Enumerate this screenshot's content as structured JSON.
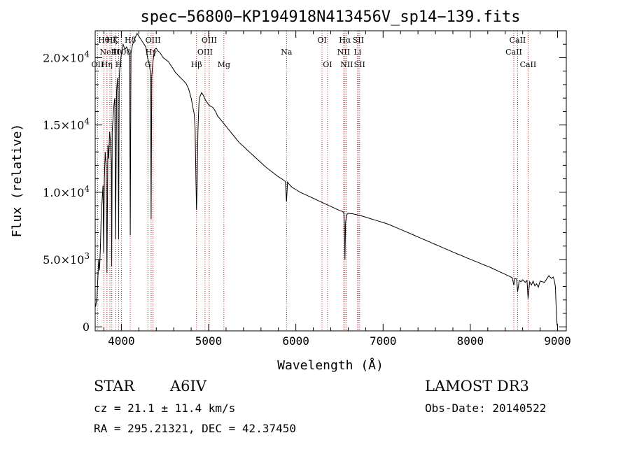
{
  "chart_data": {
    "type": "line",
    "title": "spec−56800−KP194918N413456V_sp14−139.fits",
    "xlabel": "Wavelength (Å)",
    "ylabel": "Flux (relative)",
    "xlim": [
      3700,
      9100
    ],
    "ylim": [
      -300,
      22000
    ],
    "x_ticks": [
      4000,
      5000,
      6000,
      7000,
      8000,
      9000
    ],
    "x_tick_labels": [
      "4000",
      "5000",
      "6000",
      "7000",
      "8000",
      "9000"
    ],
    "y_ticks": [
      0,
      5000,
      10000,
      15000,
      20000
    ],
    "y_tick_labels": [
      {
        "mant": "0",
        "exp": ""
      },
      {
        "mant": "5.0×10",
        "exp": "3"
      },
      {
        "mant": "1.0×10",
        "exp": "4"
      },
      {
        "mant": "1.5×10",
        "exp": "4"
      },
      {
        "mant": "2.0×10",
        "exp": "4"
      }
    ],
    "spectral_lines": [
      {
        "wavelength": 3727,
        "label": "OII",
        "row": 3
      },
      {
        "wavelength": 3799,
        "label": "Hθ",
        "row": 1
      },
      {
        "wavelength": 3835,
        "label": "Hη",
        "row": 3
      },
      {
        "wavelength": 3869,
        "label": "NeIII",
        "row": 2
      },
      {
        "wavelength": 3890,
        "label": "Hζ",
        "row": 1
      },
      {
        "wavelength": 3934,
        "label": "K",
        "row": 1
      },
      {
        "wavelength": 3969,
        "label": "H",
        "row": 3
      },
      {
        "wavelength": 4000,
        "label": "4000",
        "row": 2
      },
      {
        "wavelength": 4102,
        "label": "Hδ",
        "row": 1
      },
      {
        "wavelength": 4304,
        "label": "G",
        "row": 3
      },
      {
        "wavelength": 4341,
        "label": "Hγ",
        "row": 2
      },
      {
        "wavelength": 4363,
        "label": "OIII",
        "row": 1
      },
      {
        "wavelength": 4861,
        "label": "Hβ",
        "row": 3
      },
      {
        "wavelength": 4959,
        "label": "OIII",
        "row": 2
      },
      {
        "wavelength": 5007,
        "label": "OIII",
        "row": 1
      },
      {
        "wavelength": 5175,
        "label": "Mg",
        "row": 3
      },
      {
        "wavelength": 5893,
        "label": "Na",
        "row": 2
      },
      {
        "wavelength": 6300,
        "label": "OI",
        "row": 1
      },
      {
        "wavelength": 6363,
        "label": "OI",
        "row": 3
      },
      {
        "wavelength": 6548,
        "label": "NII",
        "row": 2
      },
      {
        "wavelength": 6563,
        "label": "Hα",
        "row": 1
      },
      {
        "wavelength": 6583,
        "label": "NII",
        "row": 3
      },
      {
        "wavelength": 6707,
        "label": "Li",
        "row": 2
      },
      {
        "wavelength": 6716,
        "label": "SII",
        "row": 1
      },
      {
        "wavelength": 6731,
        "label": "SII",
        "row": 3
      },
      {
        "wavelength": 8498,
        "label": "CaII",
        "row": 2
      },
      {
        "wavelength": 8542,
        "label": "CaII",
        "row": 1
      },
      {
        "wavelength": 8662,
        "label": "CaII",
        "row": 3
      }
    ],
    "series": [
      {
        "name": "flux",
        "x": [
          3705,
          3720,
          3730,
          3740,
          3750,
          3760,
          3770,
          3780,
          3790,
          3797,
          3805,
          3815,
          3825,
          3835,
          3845,
          3855,
          3865,
          3875,
          3885,
          3889,
          3895,
          3905,
          3915,
          3925,
          3934,
          3945,
          3955,
          3960,
          3969,
          3975,
          3985,
          3995,
          4005,
          4020,
          4040,
          4060,
          4080,
          4095,
          4102,
          4110,
          4125,
          4140,
          4160,
          4180,
          4200,
          4220,
          4240,
          4260,
          4280,
          4300,
          4320,
          4335,
          4341,
          4348,
          4360,
          4380,
          4400,
          4420,
          4440,
          4460,
          4480,
          4500,
          4520,
          4540,
          4560,
          4580,
          4600,
          4620,
          4650,
          4680,
          4710,
          4740,
          4770,
          4800,
          4820,
          4835,
          4845,
          4855,
          4861,
          4868,
          4878,
          4890,
          4900,
          4920,
          4940,
          4960,
          4980,
          5000,
          5020,
          5050,
          5080,
          5100,
          5150,
          5200,
          5250,
          5300,
          5350,
          5400,
          5450,
          5500,
          5550,
          5600,
          5650,
          5700,
          5750,
          5800,
          5850,
          5880,
          5893,
          5905,
          5930,
          5960,
          6000,
          6050,
          6100,
          6150,
          6200,
          6250,
          6300,
          6350,
          6400,
          6450,
          6500,
          6530,
          6550,
          6556,
          6563,
          6570,
          6580,
          6600,
          6620,
          6650,
          6700,
          6750,
          6800,
          6850,
          6900,
          6950,
          7000,
          7050,
          7100,
          7150,
          7200,
          7250,
          7300,
          7350,
          7400,
          7450,
          7500,
          7550,
          7600,
          7650,
          7700,
          7750,
          7800,
          7850,
          7900,
          7950,
          8000,
          8050,
          8100,
          8150,
          8200,
          8250,
          8300,
          8350,
          8400,
          8450,
          8480,
          8498,
          8510,
          8530,
          8542,
          8560,
          8580,
          8600,
          8630,
          8650,
          8662,
          8680,
          8700,
          8720,
          8740,
          8760,
          8780,
          8800,
          8850,
          8900,
          8930,
          8950,
          8960,
          8975,
          8985,
          8995
        ],
        "values": [
          1500,
          2200,
          3500,
          5000,
          4200,
          6000,
          8500,
          9500,
          10500,
          5500,
          11000,
          13000,
          12000,
          4000,
          13500,
          12500,
          14500,
          13800,
          12000,
          4500,
          14500,
          15500,
          16500,
          17000,
          6500,
          17500,
          18500,
          17000,
          6500,
          18500,
          19500,
          20000,
          20500,
          21000,
          20600,
          20800,
          20500,
          20000,
          6800,
          20300,
          20900,
          21200,
          21500,
          21800,
          21600,
          21400,
          21200,
          21000,
          20800,
          20000,
          19500,
          18800,
          8000,
          18600,
          19600,
          20600,
          20700,
          20500,
          20400,
          20200,
          20000,
          19900,
          19800,
          19700,
          19500,
          19300,
          19100,
          18900,
          18700,
          18500,
          18300,
          18100,
          17700,
          17000,
          16300,
          15800,
          14800,
          11000,
          8700,
          10500,
          14600,
          16700,
          17100,
          17400,
          17200,
          16900,
          16700,
          16500,
          16400,
          16300,
          16000,
          15700,
          15300,
          14900,
          14500,
          14100,
          13700,
          13400,
          13100,
          12800,
          12500,
          12200,
          11900,
          11650,
          11400,
          11150,
          10950,
          10800,
          9300,
          10750,
          10550,
          10350,
          10200,
          10000,
          9850,
          9700,
          9550,
          9400,
          9250,
          9100,
          8950,
          8800,
          8650,
          8580,
          8500,
          7500,
          5000,
          7700,
          8300,
          8450,
          8420,
          8400,
          8330,
          8250,
          8150,
          8050,
          7950,
          7850,
          7750,
          7650,
          7520,
          7380,
          7240,
          7100,
          6960,
          6820,
          6680,
          6540,
          6400,
          6260,
          6120,
          5980,
          5840,
          5700,
          5560,
          5420,
          5300,
          5150,
          5020,
          4890,
          4760,
          4620,
          4500,
          4350,
          4200,
          4050,
          3900,
          3750,
          3650,
          3100,
          3600,
          3550,
          2600,
          3450,
          3350,
          3500,
          3300,
          3450,
          2100,
          3350,
          3100,
          3400,
          3050,
          3200,
          2950,
          3400,
          3300,
          3800,
          3600,
          3700,
          3500,
          3000,
          1200,
          100
        ]
      }
    ]
  },
  "info": {
    "object_class": "STAR",
    "subclass": "A6IV",
    "survey": "LAMOST DR3",
    "redshift": "cz = 21.1 ± 11.4 km/s",
    "obs_date": "Obs-Date: 20140522",
    "coords": "RA = 295.21321, DEC =  42.37450"
  }
}
